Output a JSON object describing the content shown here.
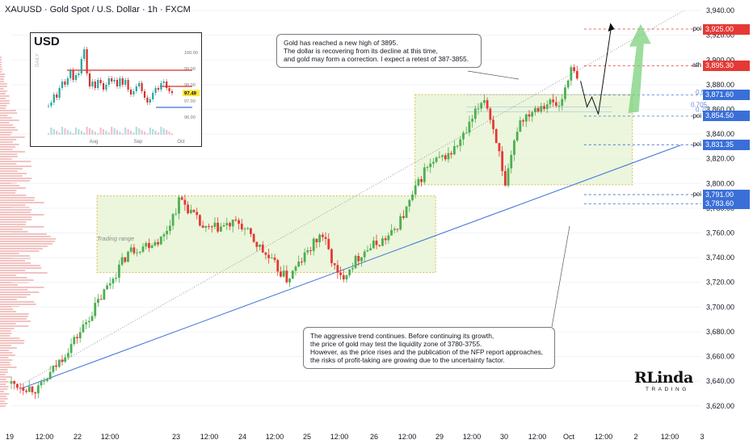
{
  "header": {
    "title": "XAUUSD · Gold Spot / U.S. Dollar · 1h · FXCM"
  },
  "colors": {
    "up": "#26a69a",
    "down": "#ef5350",
    "candle_up": "#4caf50",
    "candle_down": "#e53935",
    "trendline": "#3f6fd8",
    "zone_fill": "#e8f5d7",
    "zone_border": "#d4b43a",
    "price_red": "#e53935",
    "price_blue": "#3a6fd8",
    "arrow_green": "#7bd07b"
  },
  "annotations": {
    "note_top": [
      "Gold has reached a new high of 3895.",
      "The dollar is recovering from its decline at this time,",
      "and gold may form a correction. I expect a retest of 387-3855."
    ],
    "note_bottom": [
      "The aggressive trend continues. Before continuing its growth,",
      "the price of gold may test the liquidity zone of 3780-3755.",
      "However, as the price rises and the publication of the NFP report approaches,",
      "the risks of profit-taking are growing due to the uncertainty factor."
    ],
    "zone_label": "Trading range",
    "fib_labels": [
      "0.5",
      "0.705",
      "0.79"
    ],
    "logo_big": "RLinda",
    "logo_small": "TRADING"
  },
  "price_tags": [
    {
      "label": "poi",
      "price": "3,925.00",
      "value": 3925,
      "color": "red"
    },
    {
      "label": "ath",
      "price": "3,895.30",
      "value": 3895.3,
      "color": "red"
    },
    {
      "label": "",
      "price": "3,871.60",
      "value": 3871.6,
      "color": "blue"
    },
    {
      "label": "poi",
      "price": "3,854.50",
      "value": 3854.5,
      "color": "blue"
    },
    {
      "label": "poi",
      "price": "3,831.35",
      "value": 3831.35,
      "color": "blue"
    },
    {
      "label": "poi",
      "price": "3,791.00",
      "value": 3791,
      "color": "blue"
    },
    {
      "label": "",
      "price": "3,783.60",
      "value": 3783.6,
      "color": "blue"
    }
  ],
  "inset": {
    "title": "USD",
    "side_label": "DAILY",
    "current": "97.49",
    "yticks": [
      "100.00",
      "99.00",
      "98.00",
      "97.00",
      "96.00"
    ],
    "ytick_values": [
      100,
      99,
      98,
      97,
      96
    ],
    "xticks": [
      "Aug",
      "Sep",
      "Oct"
    ],
    "closes": [
      96.7,
      96.9,
      97.4,
      97.2,
      97.8,
      98.2,
      98.0,
      98.4,
      98.9,
      98.3,
      98.6,
      98.7,
      99.6,
      100.2,
      98.7,
      97.9,
      98.2,
      97.8,
      98.3,
      98.1,
      97.7,
      98.0,
      98.4,
      98.2,
      98.3,
      97.9,
      98.4,
      98.0,
      98.3,
      97.7,
      97.4,
      97.6,
      97.9,
      98.1,
      97.6,
      97.2,
      96.9,
      97.1,
      97.5,
      97.8,
      97.7,
      98.1,
      98.2,
      97.8,
      97.6,
      97.49
    ]
  },
  "chart_data": {
    "type": "candlestick",
    "title": "XAUUSD · Gold Spot / U.S. Dollar · 1h · FXCM",
    "xlabel": "",
    "ylabel": "",
    "ylim": [
      3612,
      3942
    ],
    "yticks": [
      3620,
      3640,
      3660,
      3680,
      3700,
      3720,
      3740,
      3760,
      3780,
      3800,
      3820,
      3840,
      3860,
      3880,
      3900,
      3920,
      3940
    ],
    "ytick_labels": [
      "3,620.00",
      "3,640.00",
      "3,660.00",
      "3,680.00",
      "3,700.00",
      "3,720.00",
      "3,740.00",
      "3,760.00",
      "3,780.00",
      "3,800.00",
      "3,820.00",
      "3,840.00",
      "3,860.00",
      "3,880.00",
      "3,900.00",
      "3,920.00",
      "3,940.00"
    ],
    "xtick_labels": [
      "19",
      "12:00",
      "22",
      "12:00",
      "23",
      "12:00",
      "24",
      "12:00",
      "25",
      "12:00",
      "26",
      "12:00",
      "29",
      "12:00",
      "30",
      "12:00",
      "Oct",
      "12:00",
      "2",
      "12:00",
      "3",
      "12:00"
    ],
    "last_close": 3885,
    "waypoints": [
      {
        "t": 0.0,
        "price": 3638
      },
      {
        "t": 0.04,
        "price": 3633
      },
      {
        "t": 0.1,
        "price": 3680
      },
      {
        "t": 0.17,
        "price": 3745
      },
      {
        "t": 0.22,
        "price": 3756
      },
      {
        "t": 0.245,
        "price": 3788
      },
      {
        "t": 0.28,
        "price": 3762
      },
      {
        "t": 0.33,
        "price": 3768
      },
      {
        "t": 0.375,
        "price": 3738
      },
      {
        "t": 0.4,
        "price": 3722
      },
      {
        "t": 0.43,
        "price": 3745
      },
      {
        "t": 0.45,
        "price": 3760
      },
      {
        "t": 0.475,
        "price": 3722
      },
      {
        "t": 0.51,
        "price": 3745
      },
      {
        "t": 0.55,
        "price": 3758
      },
      {
        "t": 0.57,
        "price": 3776
      },
      {
        "t": 0.6,
        "price": 3812
      },
      {
        "t": 0.64,
        "price": 3826
      },
      {
        "t": 0.66,
        "price": 3842
      },
      {
        "t": 0.685,
        "price": 3871
      },
      {
        "t": 0.705,
        "price": 3832
      },
      {
        "t": 0.715,
        "price": 3793
      },
      {
        "t": 0.735,
        "price": 3850
      },
      {
        "t": 0.76,
        "price": 3862
      },
      {
        "t": 0.78,
        "price": 3866
      },
      {
        "t": 0.795,
        "price": 3862
      },
      {
        "t": 0.81,
        "price": 3893
      },
      {
        "t": 0.82,
        "price": 3885
      }
    ]
  }
}
